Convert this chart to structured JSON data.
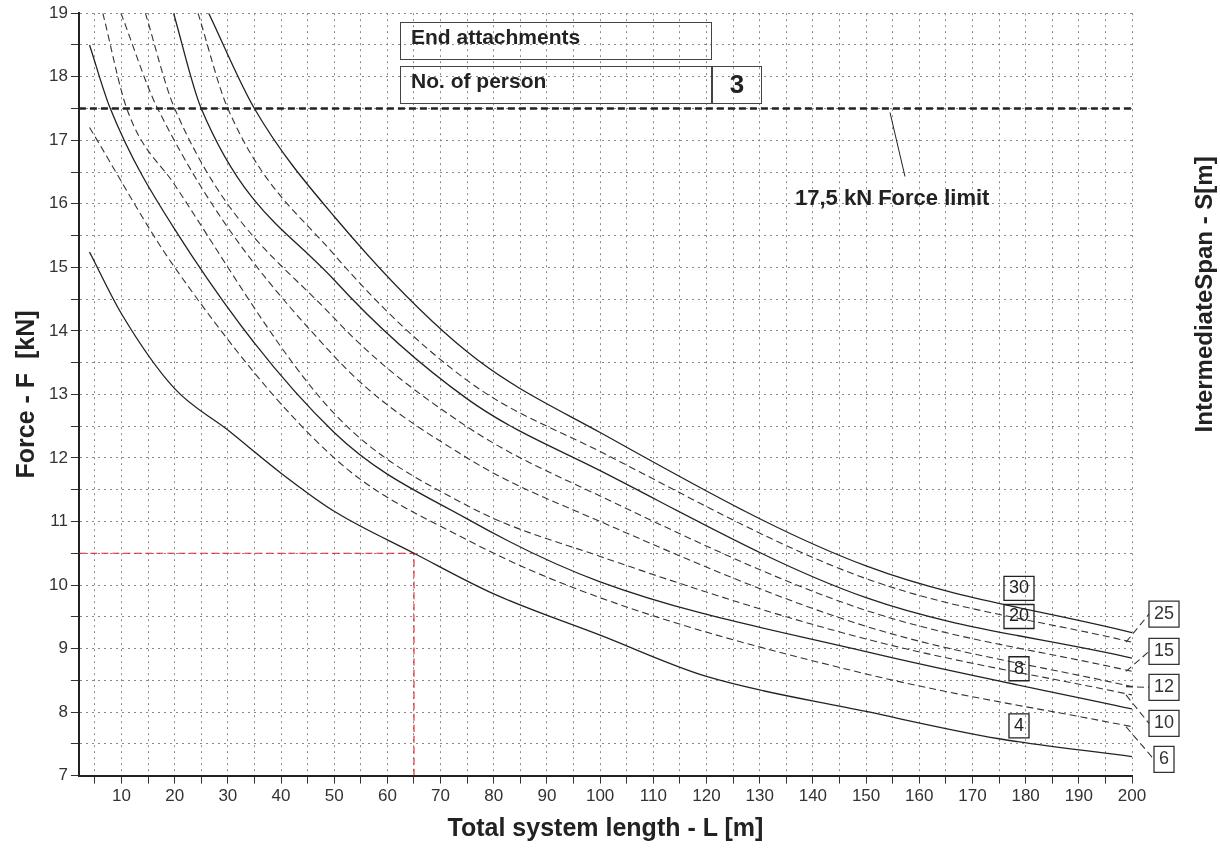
{
  "chart_data": {
    "type": "line",
    "xlabel": "Total system length - L [m]",
    "ylabel": "Force - F  [kN]",
    "y2label": "IntermediateSpan - S[m]",
    "xlim": [
      2,
      200
    ],
    "ylim": [
      7,
      19
    ],
    "xticks": [
      {
        "value": 5,
        "label": null
      },
      10,
      {
        "value": 15,
        "label": null
      },
      20,
      {
        "value": 25,
        "label": null
      },
      30,
      {
        "value": 35,
        "label": null
      },
      40,
      {
        "value": 45,
        "label": null
      },
      50,
      {
        "value": 55,
        "label": null
      },
      60,
      {
        "value": 65,
        "label": null
      },
      70,
      {
        "value": 75,
        "label": null
      },
      80,
      {
        "value": 85,
        "label": null
      },
      90,
      {
        "value": 95,
        "label": null
      },
      100,
      {
        "value": 105,
        "label": null
      },
      110,
      {
        "value": 115,
        "label": null
      },
      120,
      {
        "value": 125,
        "label": null
      },
      130,
      {
        "value": 135,
        "label": null
      },
      140,
      {
        "value": 145,
        "label": null
      },
      150,
      {
        "value": 155,
        "label": null
      },
      160,
      {
        "value": 165,
        "label": null
      },
      170,
      {
        "value": 175,
        "label": null
      },
      180,
      {
        "value": 185,
        "label": null
      },
      190,
      {
        "value": 195,
        "label": null
      },
      200
    ],
    "yticks": [
      7,
      {
        "value": 7.5,
        "label": null
      },
      8,
      {
        "value": 8.5,
        "label": null
      },
      9,
      {
        "value": 9.5,
        "label": null
      },
      10,
      {
        "value": 10.5,
        "label": null
      },
      11,
      {
        "value": 11.5,
        "label": null
      },
      12,
      {
        "value": 12.5,
        "label": null
      },
      13,
      {
        "value": 13.5,
        "label": null
      },
      14,
      {
        "value": 14.5,
        "label": null
      },
      15,
      {
        "value": 15.5,
        "label": null
      },
      16,
      {
        "value": 16.5,
        "label": null
      },
      17,
      {
        "value": 17.5,
        "label": null
      },
      18,
      {
        "value": 18.5,
        "label": null
      },
      19
    ],
    "grid": true,
    "legend": "right",
    "marker": "none",
    "series": [
      {
        "name": "30",
        "color": "#222222",
        "line_style": "solid",
        "x": [
          26.4,
          35,
          50,
          75,
          100,
          150,
          200
        ],
        "values": [
          19,
          17.5,
          15.8,
          13.67,
          12.4,
          10.3,
          9.25
        ]
      },
      {
        "name": "25",
        "color": "#333333",
        "line_style": "dashed",
        "x": [
          24.4,
          30,
          50,
          75,
          100,
          150,
          200
        ],
        "values": [
          19,
          17.5,
          15.2,
          13.22,
          12.1,
          10.1,
          9.1
        ]
      },
      {
        "name": "20",
        "color": "#222222",
        "line_style": "solid",
        "x": [
          19.8,
          25,
          50,
          75,
          100,
          150,
          200
        ],
        "values": [
          19,
          17.5,
          14.8,
          12.93,
          11.8,
          9.8,
          8.85
        ]
      },
      {
        "name": "15",
        "color": "#333333",
        "line_style": "dashed",
        "x": [
          14.5,
          20,
          50,
          75,
          100,
          150,
          200
        ],
        "values": [
          19,
          17.5,
          14.2,
          12.49,
          11.4,
          9.6,
          8.64
        ]
      },
      {
        "name": "12",
        "color": "#333333",
        "line_style": "dashed",
        "x": [
          9.9,
          16.8,
          50,
          75,
          100,
          150,
          200
        ],
        "values": [
          19,
          17.5,
          13.6,
          12.0,
          11.0,
          9.35,
          8.4
        ]
      },
      {
        "name": "10",
        "color": "#333333",
        "line_style": "dashed",
        "x": [
          6.5,
          11,
          20,
          50,
          75,
          100,
          150,
          200
        ],
        "values": [
          19,
          17.5,
          16.3,
          12.7,
          11.25,
          10.45,
          9.15,
          8.27
        ]
      },
      {
        "name": "8",
        "color": "#222222",
        "line_style": "solid",
        "x": [
          4,
          7.9,
          20,
          50,
          75,
          100,
          150,
          200
        ],
        "values": [
          18.5,
          17.5,
          15.6,
          12.4,
          11.04,
          10.05,
          8.95,
          8.05
        ]
      },
      {
        "name": "6",
        "color": "#333333",
        "line_style": "dashed",
        "x": [
          4,
          20,
          50,
          75,
          100,
          150,
          200
        ],
        "values": [
          17.2,
          15.0,
          12.0,
          10.71,
          9.8,
          8.6,
          7.77
        ]
      },
      {
        "name": "4",
        "color": "#222222",
        "line_style": "solid",
        "x": [
          4,
          10,
          20,
          30,
          40,
          50,
          65,
          80,
          100,
          120,
          150,
          175,
          200
        ],
        "values": [
          15.24,
          14.27,
          13.09,
          12.44,
          11.76,
          11.16,
          10.5,
          9.86,
          9.21,
          8.56,
          8.01,
          7.58,
          7.3
        ]
      },
      {
        "color": "#e02020",
        "line_style": "dashed",
        "x": [
          65,
          65,
          2
        ],
        "values": [
          7,
          10.5,
          10.5
        ]
      }
    ],
    "ref_lines": [
      {
        "axis": "y",
        "value": 17.5,
        "label": "17,5 kN Force limit",
        "color": "#222222",
        "line_style": "dashed"
      }
    ],
    "annotations": [
      "End attachments",
      "No. of person",
      "3"
    ]
  }
}
